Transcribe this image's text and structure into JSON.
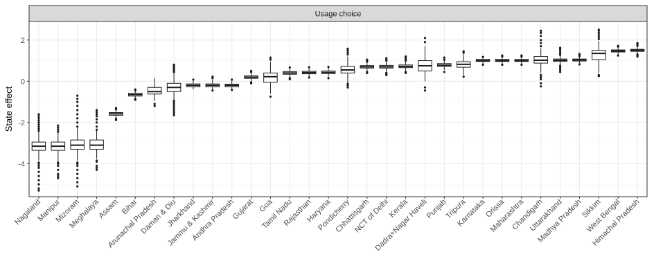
{
  "chart_data": {
    "type": "boxplot",
    "facet_label": "Usage choice",
    "xlabel": "",
    "ylabel": "State effect",
    "ylim": [
      -5.6,
      2.9
    ],
    "yticks": [
      -4,
      -2,
      0,
      2
    ],
    "grid": true,
    "colors": {
      "box_fill": "#ffffff",
      "box_stroke": "#1a1a1a",
      "grid_major": "#ebebeb",
      "grid_minor": "#f5f5f5",
      "strip_fill": "#d9d9d9",
      "panel_border": "#333333",
      "tick_text": "#4d4d4d"
    },
    "categories": [
      "Nagaland",
      "Manipur",
      "Mizoram",
      "Meghalaya",
      "Assam",
      "Bihar",
      "Arunachal Pradesh",
      "Daman & Diu",
      "Jharkhand",
      "Jammu & Kashmir",
      "Andhra Pradesh",
      "Gujarat",
      "Goa",
      "Tamil Nadu",
      "Rajasthan",
      "Haryana",
      "Pondicherry",
      "Chhattisgarh",
      "NCT of Delhi",
      "Kerala",
      "Dadra+Nagar Haveli",
      "Punjab",
      "Tripura",
      "Karnataka",
      "Orissa",
      "Maharashtra",
      "Chandigarh",
      "Uttarakhand",
      "Madhya Pradesh",
      "Sikkim",
      "West Bengal",
      "Himachal Pradesh"
    ],
    "boxes": [
      {
        "q1": -3.35,
        "median": -3.15,
        "q3": -2.95,
        "whisker_low": -3.85,
        "whisker_high": -2.45,
        "outliers": [
          -5.3,
          -5.2,
          -5.0,
          -4.8,
          -4.6,
          -4.4,
          -4.2,
          -4.1,
          -4.0,
          -3.95,
          -2.4,
          -2.3,
          -2.2,
          -2.1,
          -2.0,
          -1.9,
          -1.8,
          -1.7,
          -1.6
        ]
      },
      {
        "q1": -3.35,
        "median": -3.15,
        "q3": -2.95,
        "whisker_low": -3.9,
        "whisker_high": -2.5,
        "outliers": [
          -4.7,
          -4.6,
          -4.5,
          -4.3,
          -4.1,
          -4.0,
          -3.95,
          -2.45,
          -2.35,
          -2.25,
          -2.15
        ]
      },
      {
        "q1": -3.3,
        "median": -3.1,
        "q3": -2.85,
        "whisker_low": -3.85,
        "whisker_high": -2.25,
        "outliers": [
          -5.1,
          -4.9,
          -4.7,
          -4.5,
          -4.3,
          -4.1,
          -4.0,
          -3.95,
          -2.2,
          -2.0,
          -1.8,
          -1.6,
          -1.4,
          -1.2,
          -1.0,
          -0.85,
          -0.7
        ]
      },
      {
        "q1": -3.3,
        "median": -3.1,
        "q3": -2.85,
        "whisker_low": -3.75,
        "whisker_high": -2.4,
        "outliers": [
          -4.3,
          -4.2,
          -4.1,
          -3.9,
          -3.85,
          -2.35,
          -2.2,
          -2.0,
          -1.85,
          -1.7,
          -1.6,
          -1.5,
          -1.4
        ]
      },
      {
        "q1": -1.65,
        "median": -1.58,
        "q3": -1.52,
        "whisker_low": -1.78,
        "whisker_high": -1.4,
        "outliers": [
          -1.88,
          -1.82,
          -1.36,
          -1.3
        ]
      },
      {
        "q1": -0.72,
        "median": -0.65,
        "q3": -0.58,
        "whisker_low": -0.82,
        "whisker_high": -0.48,
        "outliers": [
          -0.9,
          -0.86,
          -0.44,
          -0.4
        ]
      },
      {
        "q1": -0.62,
        "median": -0.5,
        "q3": -0.3,
        "whisker_low": -0.95,
        "whisker_high": 0.15,
        "outliers": [
          -1.2,
          -1.1
        ]
      },
      {
        "q1": -0.5,
        "median": -0.3,
        "q3": -0.1,
        "whisker_low": -0.9,
        "whisker_high": 0.4,
        "outliers": [
          -1.65,
          -1.55,
          -1.45,
          -1.35,
          -1.25,
          -1.15,
          -1.05,
          -0.95,
          0.45,
          0.5,
          0.55,
          0.6,
          0.65,
          0.7,
          0.75,
          0.8
        ]
      },
      {
        "q1": -0.27,
        "median": -0.2,
        "q3": -0.13,
        "whisker_low": -0.4,
        "whisker_high": 0.05,
        "outliers": [
          0.08
        ]
      },
      {
        "q1": -0.27,
        "median": -0.2,
        "q3": -0.13,
        "whisker_low": -0.4,
        "whisker_high": 0.08,
        "outliers": [
          -0.45,
          0.15,
          0.22
        ]
      },
      {
        "q1": -0.27,
        "median": -0.2,
        "q3": -0.14,
        "whisker_low": -0.38,
        "whisker_high": 0.05,
        "outliers": [
          -0.42,
          0.08
        ]
      },
      {
        "q1": 0.14,
        "median": 0.2,
        "q3": 0.26,
        "whisker_low": 0.0,
        "whisker_high": 0.4,
        "outliers": [
          -0.1,
          -0.05,
          0.45,
          0.5
        ]
      },
      {
        "q1": -0.05,
        "median": 0.22,
        "q3": 0.4,
        "whisker_low": -0.6,
        "whisker_high": 0.95,
        "outliers": [
          -0.75,
          1.05,
          1.15
        ]
      },
      {
        "q1": 0.34,
        "median": 0.4,
        "q3": 0.47,
        "whisker_low": 0.2,
        "whisker_high": 0.62,
        "outliers": [
          0.1,
          0.15,
          0.67
        ]
      },
      {
        "q1": 0.36,
        "median": 0.42,
        "q3": 0.48,
        "whisker_low": 0.22,
        "whisker_high": 0.62,
        "outliers": [
          0.18,
          0.68
        ]
      },
      {
        "q1": 0.37,
        "median": 0.43,
        "q3": 0.5,
        "whisker_low": 0.22,
        "whisker_high": 0.65,
        "outliers": [
          0.15,
          0.7
        ]
      },
      {
        "q1": 0.4,
        "median": 0.55,
        "q3": 0.72,
        "whisker_low": -0.05,
        "whisker_high": 1.2,
        "outliers": [
          -0.3,
          -0.2,
          -0.12,
          1.3,
          1.4,
          1.5,
          1.58
        ]
      },
      {
        "q1": 0.64,
        "median": 0.7,
        "q3": 0.76,
        "whisker_low": 0.5,
        "whisker_high": 0.9,
        "outliers": [
          0.4,
          0.45,
          0.95,
          1.0,
          1.05
        ]
      },
      {
        "q1": 0.64,
        "median": 0.7,
        "q3": 0.77,
        "whisker_low": 0.45,
        "whisker_high": 0.95,
        "outliers": [
          0.3,
          0.35,
          0.4,
          1.0,
          1.05,
          1.12
        ]
      },
      {
        "q1": 0.66,
        "median": 0.72,
        "q3": 0.79,
        "whisker_low": 0.5,
        "whisker_high": 0.95,
        "outliers": [
          0.4,
          0.45,
          1.0,
          1.08,
          1.15,
          1.2
        ]
      },
      {
        "q1": 0.5,
        "median": 0.75,
        "q3": 1.0,
        "whisker_low": 0.0,
        "whisker_high": 1.7,
        "outliers": [
          -0.45,
          -0.3,
          1.9,
          2.1
        ]
      },
      {
        "q1": 0.72,
        "median": 0.78,
        "q3": 0.86,
        "whisker_low": 0.55,
        "whisker_high": 1.0,
        "outliers": [
          0.45,
          1.05,
          1.15
        ]
      },
      {
        "q1": 0.68,
        "median": 0.82,
        "q3": 0.95,
        "whisker_low": 0.3,
        "whisker_high": 1.3,
        "outliers": [
          0.22,
          1.38,
          1.45
        ]
      },
      {
        "q1": 0.96,
        "median": 1.0,
        "q3": 1.06,
        "whisker_low": 0.85,
        "whisker_high": 1.15,
        "outliers": [
          0.8,
          1.18
        ]
      },
      {
        "q1": 0.96,
        "median": 1.0,
        "q3": 1.06,
        "whisker_low": 0.85,
        "whisker_high": 1.15,
        "outliers": [
          0.8,
          1.2,
          1.25
        ]
      },
      {
        "q1": 0.96,
        "median": 1.0,
        "q3": 1.06,
        "whisker_low": 0.85,
        "whisker_high": 1.15,
        "outliers": [
          0.8,
          1.2,
          1.25
        ]
      },
      {
        "q1": 0.88,
        "median": 1.02,
        "q3": 1.2,
        "whisker_low": 0.4,
        "whisker_high": 1.6,
        "outliers": [
          -0.25,
          -0.1,
          0.1,
          0.2,
          0.3,
          1.7,
          1.85,
          2.0,
          2.2,
          2.35,
          2.45
        ]
      },
      {
        "q1": 0.96,
        "median": 1.02,
        "q3": 1.08,
        "whisker_low": 0.8,
        "whisker_high": 1.22,
        "outliers": [
          0.45,
          0.55,
          0.65,
          0.75,
          1.28,
          1.35,
          1.45,
          1.55,
          1.62
        ]
      },
      {
        "q1": 0.98,
        "median": 1.03,
        "q3": 1.08,
        "whisker_low": 0.88,
        "whisker_high": 1.18,
        "outliers": [
          0.82,
          1.22,
          1.28,
          1.32
        ]
      },
      {
        "q1": 1.05,
        "median": 1.35,
        "q3": 1.5,
        "whisker_low": 0.4,
        "whisker_high": 1.95,
        "outliers": [
          0.25,
          0.3,
          2.05,
          2.15,
          2.25,
          2.35,
          2.45,
          2.5
        ]
      },
      {
        "q1": 1.42,
        "median": 1.47,
        "q3": 1.52,
        "whisker_low": 1.3,
        "whisker_high": 1.62,
        "outliers": [
          1.25,
          1.68,
          1.72
        ]
      },
      {
        "q1": 1.45,
        "median": 1.5,
        "q3": 1.55,
        "whisker_low": 1.35,
        "whisker_high": 1.67,
        "outliers": [
          1.2,
          1.25,
          1.3,
          1.72,
          1.78,
          1.85
        ]
      }
    ]
  }
}
